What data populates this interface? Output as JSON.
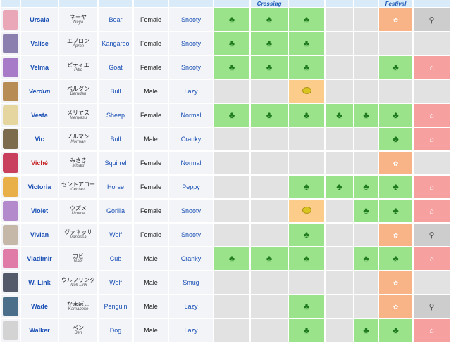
{
  "header": {
    "col_crossing": "Crossing",
    "col_festival": "Festival"
  },
  "villagers": [
    {
      "name": "Ursala",
      "jp": "ネーヤ",
      "romaji": "Nēya",
      "species": "Bear",
      "gender": "Female",
      "personality": "Snooty",
      "avatar_color": "#e9a7b8",
      "name_style": "normal",
      "cells": [
        "tree",
        "tree",
        "tree",
        "empty",
        "empty",
        "flower",
        "wrench"
      ]
    },
    {
      "name": "Valise",
      "jp": "エプロン",
      "romaji": "Apron",
      "species": "Kangaroo",
      "gender": "Female",
      "personality": "Snooty",
      "avatar_color": "#8a7fae",
      "name_style": "normal",
      "cells": [
        "tree",
        "tree",
        "tree",
        "empty",
        "empty",
        "empty",
        "empty"
      ]
    },
    {
      "name": "Velma",
      "jp": "ピティエ",
      "romaji": "Pitie",
      "species": "Goat",
      "gender": "Female",
      "personality": "Snooty",
      "avatar_color": "#a77bc7",
      "name_style": "normal",
      "cells": [
        "tree",
        "tree",
        "tree",
        "empty",
        "empty",
        "tree",
        "house"
      ]
    },
    {
      "name": "Verdun",
      "jp": "ベルダン",
      "romaji": "Berudan",
      "species": "Bull",
      "gender": "Male",
      "personality": "Lazy",
      "avatar_color": "#b88c55",
      "name_style": "italic",
      "cells": [
        "empty",
        "empty",
        "lemon",
        "empty",
        "empty",
        "empty",
        "empty"
      ]
    },
    {
      "name": "Vesta",
      "jp": "メリヤス",
      "romaji": "Meriyasu",
      "species": "Sheep",
      "gender": "Female",
      "personality": "Normal",
      "avatar_color": "#e5d6a0",
      "name_style": "normal",
      "cells": [
        "tree",
        "tree",
        "tree",
        "tree",
        "tree",
        "tree",
        "house"
      ]
    },
    {
      "name": "Vic",
      "jp": "ノルマン",
      "romaji": "Norman",
      "species": "Bull",
      "gender": "Male",
      "personality": "Cranky",
      "avatar_color": "#7c6b4c",
      "name_style": "normal",
      "cells": [
        "empty",
        "empty",
        "empty",
        "empty",
        "empty",
        "tree",
        "house"
      ]
    },
    {
      "name": "Viché",
      "jp": "みさき",
      "romaji": "Misaki",
      "species": "Squirrel",
      "gender": "Female",
      "personality": "Normal",
      "avatar_color": "#c8405d",
      "name_style": "red",
      "cells": [
        "empty",
        "empty",
        "empty",
        "empty",
        "empty",
        "flower",
        "empty"
      ]
    },
    {
      "name": "Victoria",
      "jp": "セントアロー",
      "romaji": "Centaur",
      "species": "Horse",
      "gender": "Female",
      "personality": "Peppy",
      "avatar_color": "#e9b04a",
      "name_style": "normal",
      "cells": [
        "empty",
        "empty",
        "tree",
        "tree",
        "tree",
        "tree",
        "house"
      ]
    },
    {
      "name": "Violet",
      "jp": "ウズメ",
      "romaji": "Uzume",
      "species": "Gorilla",
      "gender": "Female",
      "personality": "Snooty",
      "avatar_color": "#b38acb",
      "name_style": "normal",
      "cells": [
        "empty",
        "empty",
        "lemon",
        "empty",
        "tree",
        "tree",
        "house"
      ]
    },
    {
      "name": "Vivian",
      "jp": "ヴァネッサ",
      "romaji": "Vanessa",
      "species": "Wolf",
      "gender": "Female",
      "personality": "Snooty",
      "avatar_color": "#c6b8a8",
      "name_style": "normal",
      "cells": [
        "empty",
        "empty",
        "tree",
        "empty",
        "empty",
        "flower",
        "wrench"
      ]
    },
    {
      "name": "Vladimir",
      "jp": "カビ",
      "romaji": "Gabi",
      "species": "Cub",
      "gender": "Male",
      "personality": "Cranky",
      "avatar_color": "#e07aa6",
      "name_style": "normal",
      "cells": [
        "tree",
        "tree",
        "tree",
        "empty",
        "tree",
        "tree",
        "house"
      ]
    },
    {
      "name": "W. Link",
      "jp": "ウルフリンク",
      "romaji": "Wolf Link",
      "species": "Wolf",
      "gender": "Male",
      "personality": "Smug",
      "avatar_color": "#555a6b",
      "name_style": "normal",
      "cells": [
        "empty",
        "empty",
        "empty",
        "empty",
        "empty",
        "flower",
        "empty"
      ]
    },
    {
      "name": "Wade",
      "jp": "かまぼこ",
      "romaji": "Kamaboko",
      "species": "Penguin",
      "gender": "Male",
      "personality": "Lazy",
      "avatar_color": "#4b6f8a",
      "name_style": "normal",
      "cells": [
        "empty",
        "empty",
        "tree",
        "empty",
        "empty",
        "flower",
        "wrench"
      ]
    },
    {
      "name": "Walker",
      "jp": "ベン",
      "romaji": "Ben",
      "species": "Dog",
      "gender": "Male",
      "personality": "Lazy",
      "avatar_color": "#d3d3d3",
      "name_style": "normal",
      "cells": [
        "empty",
        "empty",
        "tree",
        "empty",
        "tree",
        "tree",
        "house"
      ]
    }
  ],
  "icons": {
    "tree": "tree-icon",
    "lemon": "lemon-icon",
    "flower": "flower-icon",
    "house": "house-icon",
    "wrench": "wrench-icon"
  },
  "colors": {
    "tree": "#9be38a",
    "lemon": "#fccd8a",
    "flower": "#f8b387",
    "house": "#f7a0a0",
    "wrench": "#cdcdcd",
    "empty": "#e2e2e2"
  }
}
